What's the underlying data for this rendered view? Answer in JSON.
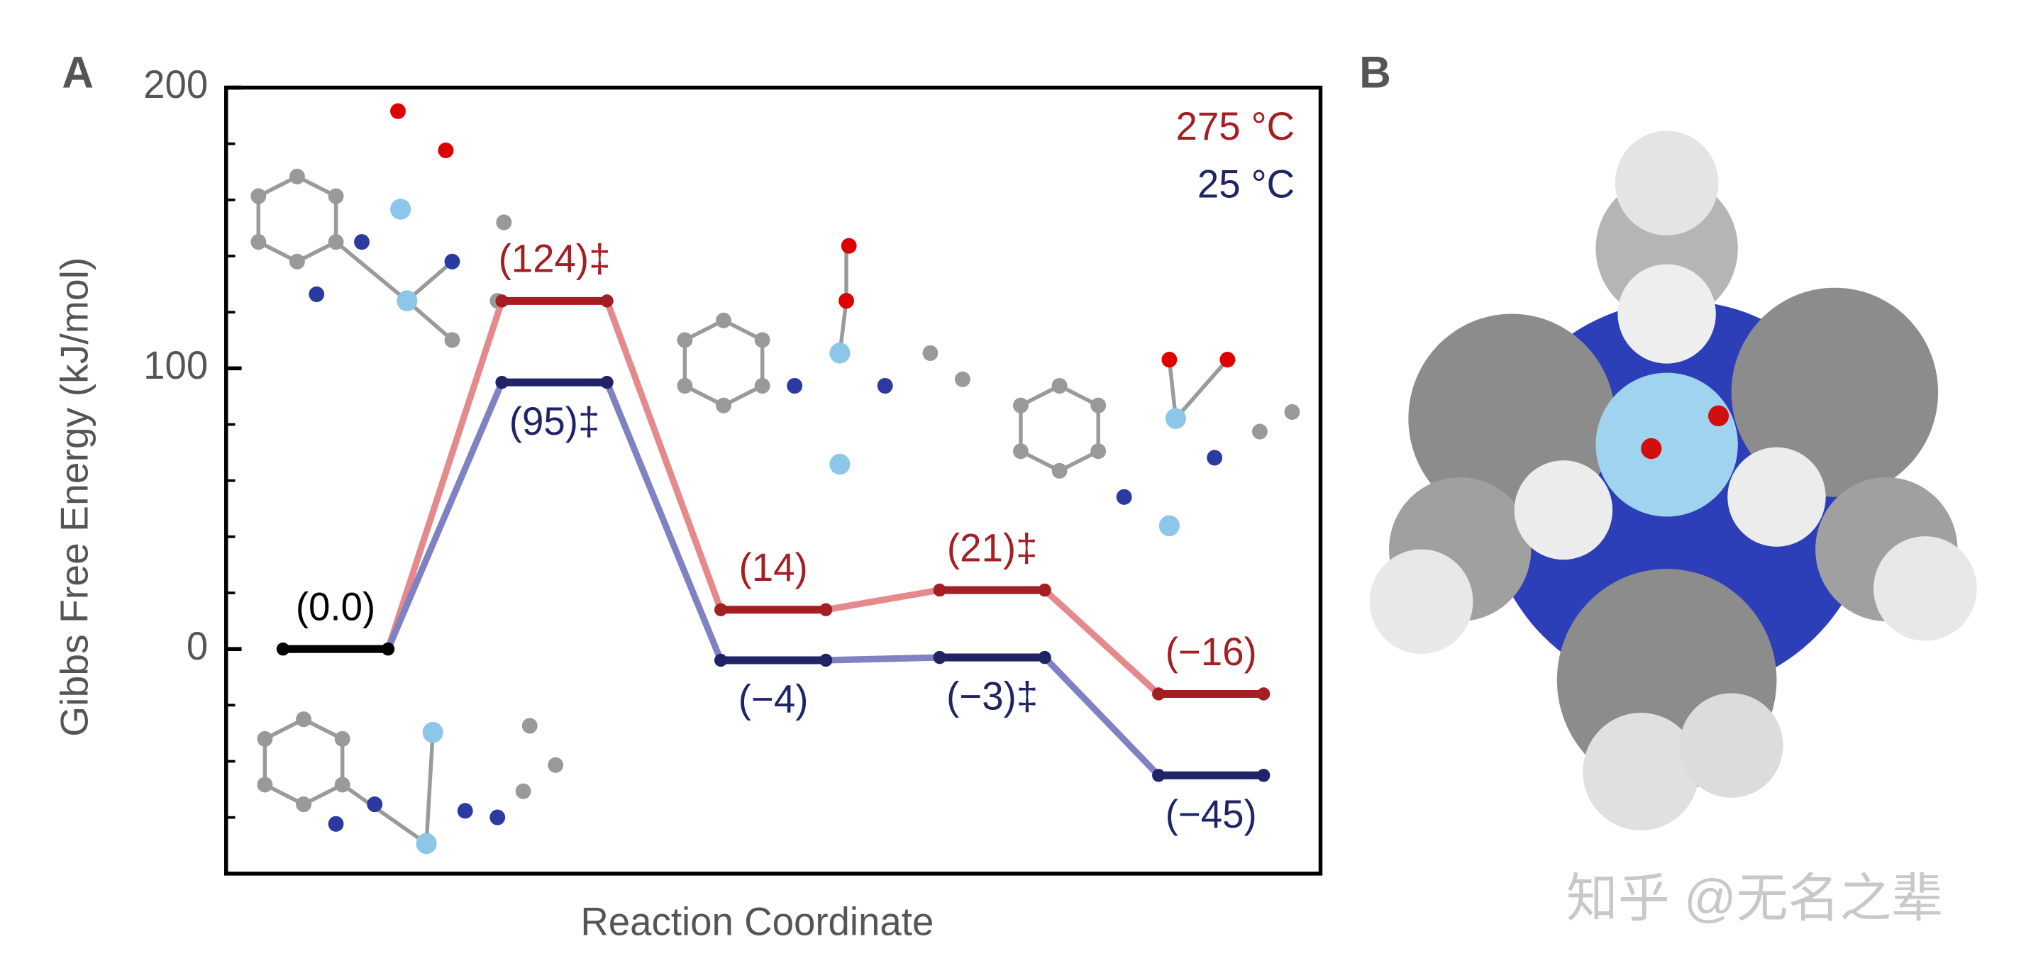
{
  "panel_labels": [
    "A",
    "B"
  ],
  "watermark": "知乎 @无名之辈",
  "chart_data": {
    "type": "energy-profile",
    "ylabel": "Gibbs Free Energy (kJ/mol)",
    "xlabel": "Reaction Coordinate",
    "categories": [
      null,
      null,
      null,
      null,
      null
    ],
    "start": {
      "value": 0,
      "label": "(0.0)",
      "color": "#000000"
    },
    "series": [
      {
        "name": "275 °C",
        "color": "#a31f24",
        "connector_color": "#e58a8c",
        "values": [
          null,
          124,
          14,
          21,
          -16
        ],
        "value_labels": [
          null,
          "(124)‡",
          "(14)",
          "(21)‡",
          "(−16)"
        ]
      },
      {
        "name": "25 °C",
        "color": "#1f2466",
        "connector_color": "#7f82c2",
        "values": [
          null,
          95,
          -4,
          -3,
          -45
        ],
        "value_labels": [
          null,
          "(95)‡",
          "(−4)",
          "(−3)‡",
          "(−45)"
        ]
      }
    ],
    "ylim": [
      -80,
      200
    ],
    "yticks": [
      0,
      100,
      200
    ],
    "minor_yticks": [
      -60,
      -40,
      -20,
      20,
      40,
      60,
      80,
      120,
      140,
      160,
      180
    ],
    "legend": "upper right"
  }
}
